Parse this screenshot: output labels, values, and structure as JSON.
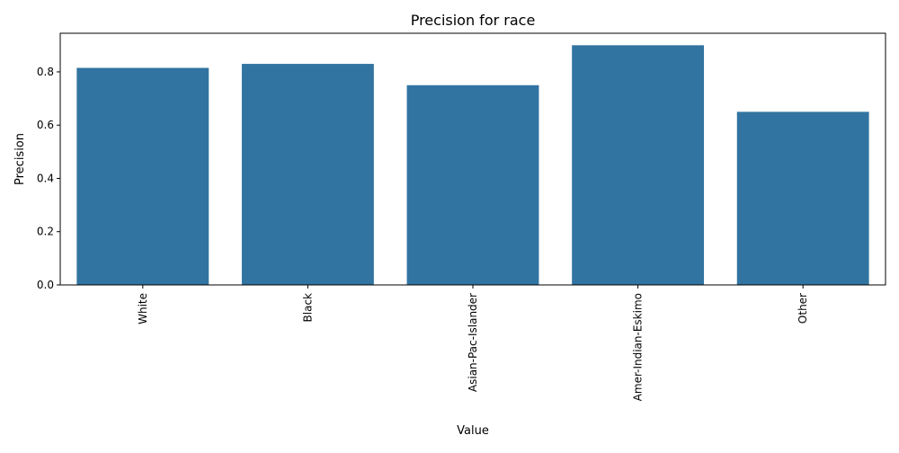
{
  "chart_data": {
    "type": "bar",
    "title": "Precision for race",
    "xlabel": "Value",
    "ylabel": "Precision",
    "categories": [
      "White",
      "Black",
      "Asian-Pac-Islander",
      "Amer-Indian-Eskimo",
      "Other"
    ],
    "values": [
      0.815,
      0.83,
      0.75,
      0.9,
      0.65
    ],
    "ylim": [
      0,
      0.945
    ],
    "yticks": [
      "0.0",
      "0.2",
      "0.4",
      "0.6",
      "0.8"
    ],
    "ytick_values": [
      0.0,
      0.2,
      0.4,
      0.6,
      0.8
    ],
    "bar_color": "#3274a1",
    "grid": false,
    "legend": "none"
  }
}
